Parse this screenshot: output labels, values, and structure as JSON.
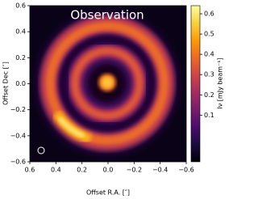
{
  "chart_data": {
    "type": "image",
    "title": "Observation",
    "x_label": "Offset R.A. [″]",
    "y_label": "Offset Dec [″]",
    "xlim": [
      0.6,
      -0.6
    ],
    "xticks": [
      0.6,
      0.4,
      0.2,
      {
        "value": 0,
        "label": "0.0"
      },
      {
        "value": -0.2,
        "label": "−0.2"
      },
      {
        "value": -0.4,
        "label": "−0.4"
      },
      {
        "value": -0.6,
        "label": "−0.6"
      }
    ],
    "ylim": [
      -0.6,
      0.6
    ],
    "yticks": [
      {
        "value": -0.6,
        "label": "−0.6"
      },
      {
        "value": -0.4,
        "label": "−0.4"
      },
      {
        "value": -0.2,
        "label": "−0.2"
      },
      {
        "value": 0,
        "label": "0.0"
      },
      0.2,
      0.4,
      0.6
    ],
    "colorbar": {
      "label": "Iν [mJy beam⁻¹]",
      "colormap": "inferno",
      "clim": [
        -0.13,
        0.64
      ],
      "ticks": [
        0.1,
        0.2,
        0.3,
        0.4,
        0.5,
        0.6
      ]
    }
  }
}
